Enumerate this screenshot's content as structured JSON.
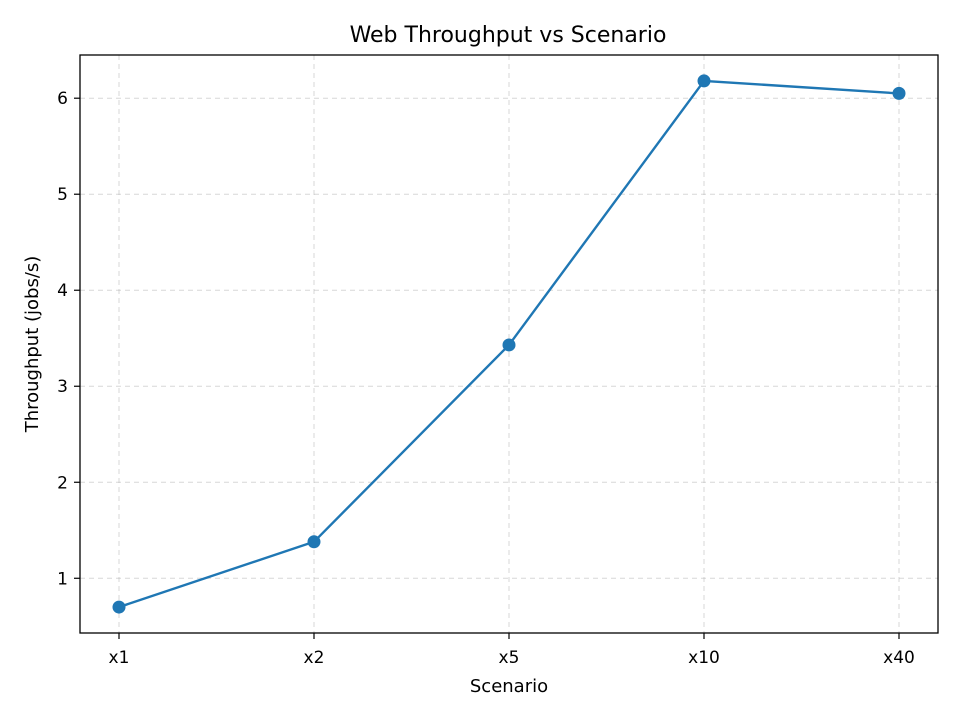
{
  "chart_data": {
    "type": "line",
    "title": "Web Throughput vs Scenario",
    "xlabel": "Scenario",
    "ylabel": "Throughput (jobs/s)",
    "categories": [
      "x1",
      "x2",
      "x5",
      "x10",
      "x40"
    ],
    "series": [
      {
        "values": [
          0.7,
          1.38,
          3.43,
          6.18,
          6.05
        ]
      }
    ],
    "ylim": [
      0.43,
      6.45
    ],
    "yticks": [
      1,
      2,
      3,
      4,
      5,
      6
    ],
    "grid": true,
    "marker": "circle",
    "line_color": "#1f77b4"
  }
}
